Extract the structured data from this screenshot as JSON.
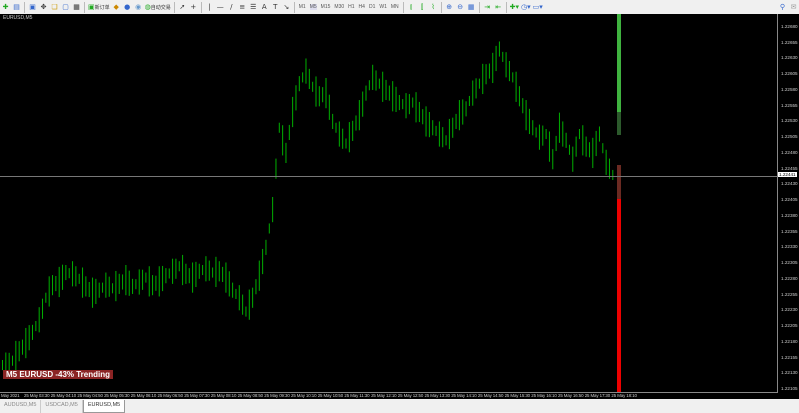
{
  "toolbar": {
    "new_order": "新订单",
    "auto_trading": "自动交易",
    "timeframes": [
      "M1",
      "M5",
      "M15",
      "M30",
      "H1",
      "H4",
      "D1",
      "W1",
      "MN"
    ],
    "active_timeframe": "M5"
  },
  "chart": {
    "title": "EURUSD,M5",
    "current_price": "1.22441",
    "price_labels": [
      "1.22680",
      "1.22655",
      "1.22630",
      "1.22605",
      "1.22580",
      "1.22555",
      "1.22530",
      "1.22505",
      "1.22480",
      "1.22455",
      "1.22430",
      "1.22405",
      "1.22380",
      "1.22355",
      "1.22330",
      "1.22305",
      "1.22280",
      "1.22255",
      "1.22230",
      "1.22205",
      "1.22180",
      "1.22155",
      "1.22130",
      "1.22105"
    ],
    "time_labels": [
      "May 2021",
      "25 May 03:30",
      "25 May 04:10",
      "25 May 04:50",
      "25 May 05:30",
      "25 May 06:10",
      "25 May 06:50",
      "25 May 07:30",
      "25 May 08:10",
      "25 May 08:50",
      "25 May 09:30",
      "25 May 10:10",
      "25 May 10:50",
      "25 May 11:30",
      "25 May 12:10",
      "25 May 12:50",
      "25 May 13:30",
      "25 May 14:10",
      "25 May 14:50",
      "25 May 15:30",
      "25 May 16:10",
      "25 May 16:50",
      "25 May 17:30",
      "25 May 18:10"
    ],
    "signal_label": "M5 EURUSD -43% Trending",
    "colors": {
      "bar": "#00b000",
      "strength_up": "#3fb23f",
      "strength_down": "#ee0000",
      "signal_bg": "#8b2424"
    },
    "strength_meter": {
      "bullish_percent": 43,
      "bearish_percent": 57
    }
  },
  "chart_data": {
    "type": "bar",
    "symbol": "EURUSD",
    "timeframe": "M5",
    "ylim": [
      1.22105,
      1.2268
    ],
    "closes": [
      1.22143,
      1.2215,
      1.22165,
      1.22178,
      1.22195,
      1.22215,
      1.2225,
      1.2227,
      1.22275,
      1.2229,
      1.22288,
      1.2228,
      1.22268,
      1.22258,
      1.22262,
      1.2227,
      1.22265,
      1.22272,
      1.22278,
      1.22268,
      1.22275,
      1.22282,
      1.2227,
      1.22276,
      1.22285,
      1.22292,
      1.223,
      1.22288,
      1.22282,
      1.22292,
      1.22296,
      1.2229,
      1.22292,
      1.22282,
      1.22262,
      1.2225,
      1.22228,
      1.2225,
      1.22285,
      1.2233,
      1.2239,
      1.2252,
      1.2248,
      1.22545,
      1.2259,
      1.2261,
      1.22585,
      1.2257,
      1.22575,
      1.2253,
      1.2251,
      1.22495,
      1.22515,
      1.2254,
      1.22575,
      1.226,
      1.2259,
      1.2258,
      1.2257,
      1.2256,
      1.22555,
      1.2256,
      1.22545,
      1.2253,
      1.2252,
      1.2251,
      1.225,
      1.2252,
      1.2254,
      1.2255,
      1.22575,
      1.2259,
      1.22605,
      1.22615,
      1.22645,
      1.2262,
      1.226,
      1.2257,
      1.2254,
      1.2252,
      1.22505,
      1.2251,
      1.2247,
      1.2252,
      1.225,
      1.2247,
      1.2251,
      1.2249,
      1.2248,
      1.2251,
      1.22465,
      1.22445
    ]
  },
  "tabs": [
    "AUDUSD,M5",
    "USDCAD,M5",
    "EURUSD,M5"
  ],
  "active_tab": "EURUSD,M5"
}
